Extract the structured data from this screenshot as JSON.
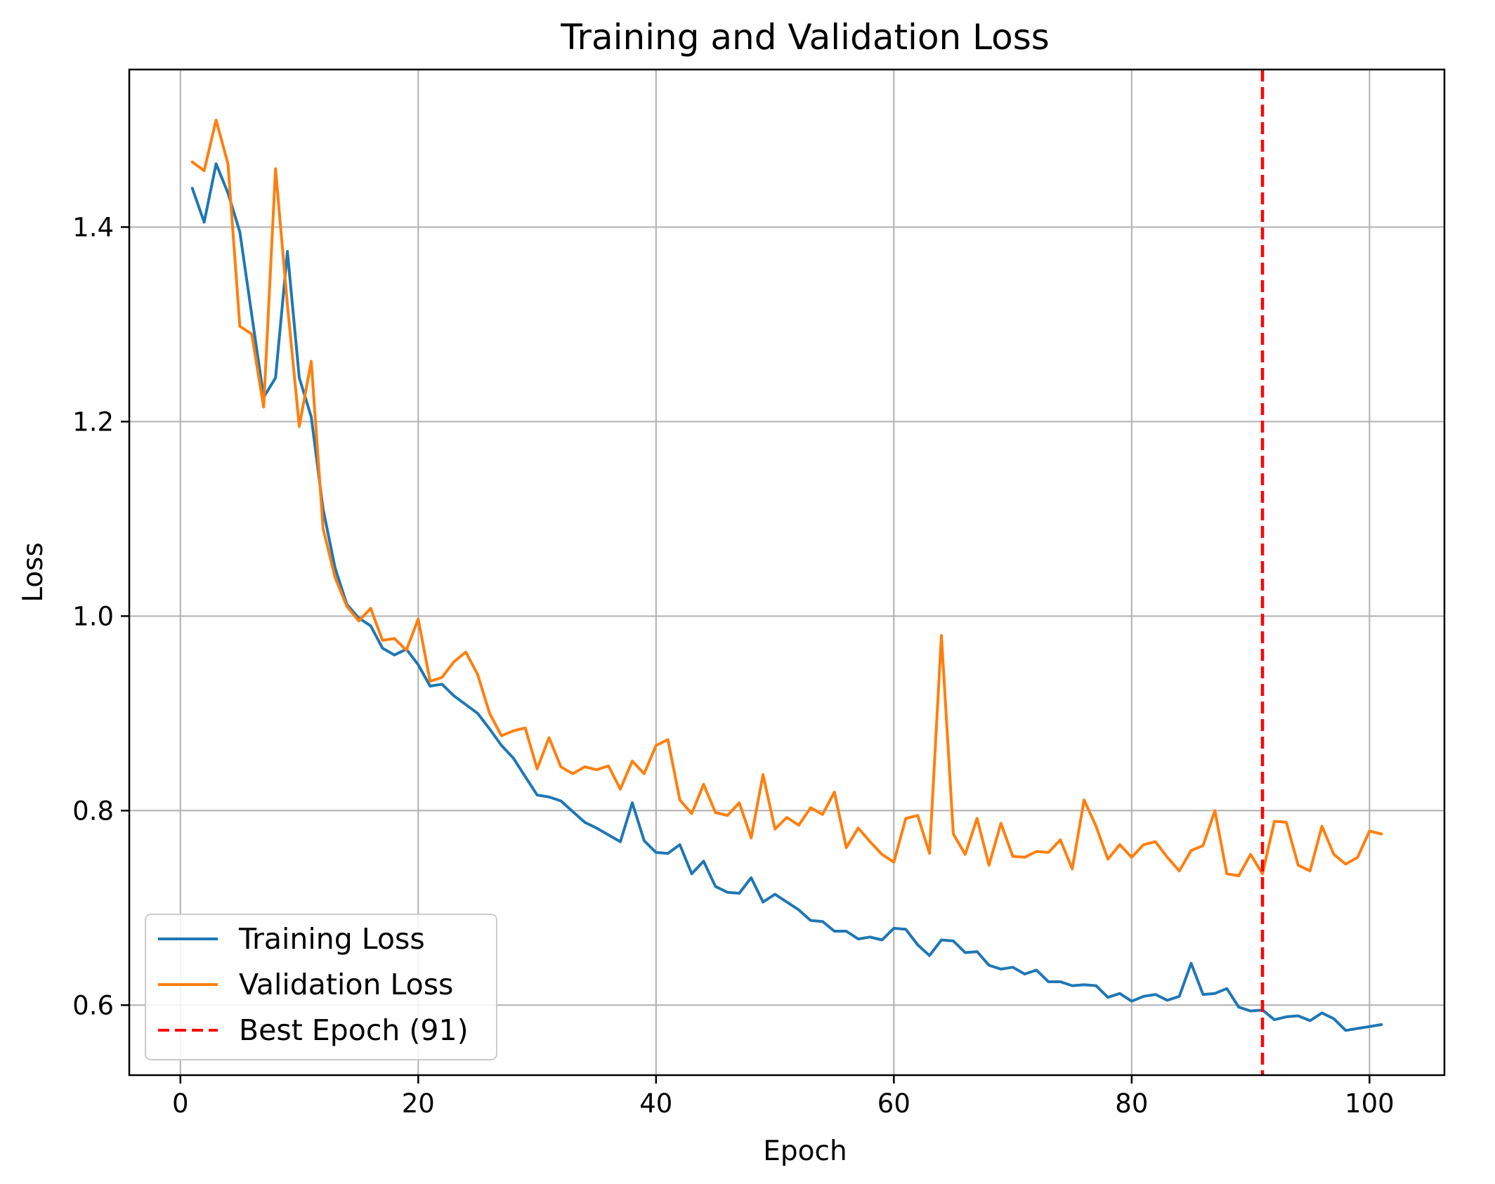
{
  "chart_data": {
    "type": "line",
    "title": "Training and Validation Loss",
    "xlabel": "Epoch",
    "ylabel": "Loss",
    "xlim": [
      -4.3,
      106.3
    ],
    "ylim": [
      0.528,
      1.562
    ],
    "xticks": [
      0,
      20,
      40,
      60,
      80,
      100
    ],
    "xtick_labels": [
      "0",
      "20",
      "40",
      "60",
      "80",
      "100"
    ],
    "yticks": [
      0.6,
      0.8,
      1.0,
      1.2,
      1.4
    ],
    "ytick_labels": [
      "0.6",
      "0.8",
      "1.0",
      "1.2",
      "1.4"
    ],
    "grid": true,
    "legend_position": "lower-left",
    "x": [
      1,
      2,
      3,
      4,
      5,
      6,
      7,
      8,
      9,
      10,
      11,
      12,
      13,
      14,
      15,
      16,
      17,
      18,
      19,
      20,
      21,
      22,
      23,
      24,
      25,
      26,
      27,
      28,
      29,
      30,
      31,
      32,
      33,
      34,
      35,
      36,
      37,
      38,
      39,
      40,
      41,
      42,
      43,
      44,
      45,
      46,
      47,
      48,
      49,
      50,
      51,
      52,
      53,
      54,
      55,
      56,
      57,
      58,
      59,
      60,
      61,
      62,
      63,
      64,
      65,
      66,
      67,
      68,
      69,
      70,
      71,
      72,
      73,
      74,
      75,
      76,
      77,
      78,
      79,
      80,
      81,
      82,
      83,
      84,
      85,
      86,
      87,
      88,
      89,
      90,
      91,
      92,
      93,
      94,
      95,
      96,
      97,
      98,
      99,
      100,
      101
    ],
    "series": [
      {
        "name": "Training Loss",
        "color": "#1f77b4",
        "values": [
          1.44,
          1.405,
          1.465,
          1.435,
          1.395,
          1.31,
          1.225,
          1.245,
          1.375,
          1.245,
          1.205,
          1.11,
          1.05,
          1.012,
          0.998,
          0.99,
          0.967,
          0.96,
          0.966,
          0.95,
          0.928,
          0.93,
          0.918,
          0.909,
          0.9,
          0.884,
          0.867,
          0.854,
          0.835,
          0.816,
          0.814,
          0.81,
          0.799,
          0.788,
          0.782,
          0.775,
          0.768,
          0.808,
          0.769,
          0.757,
          0.756,
          0.765,
          0.735,
          0.748,
          0.722,
          0.716,
          0.715,
          0.731,
          0.706,
          0.714,
          0.706,
          0.698,
          0.687,
          0.686,
          0.676,
          0.676,
          0.668,
          0.67,
          0.667,
          0.679,
          0.678,
          0.662,
          0.651,
          0.667,
          0.666,
          0.654,
          0.655,
          0.641,
          0.637,
          0.639,
          0.632,
          0.636,
          0.624,
          0.624,
          0.62,
          0.621,
          0.62,
          0.608,
          0.612,
          0.604,
          0.609,
          0.611,
          0.605,
          0.609,
          0.643,
          0.611,
          0.612,
          0.617,
          0.598,
          0.594,
          0.595,
          0.585,
          0.588,
          0.589,
          0.584,
          0.592,
          0.586,
          0.574,
          0.576,
          0.578,
          0.58
        ]
      },
      {
        "name": "Validation Loss",
        "color": "#ff7f0e",
        "values": [
          1.467,
          1.458,
          1.51,
          1.465,
          1.298,
          1.29,
          1.215,
          1.46,
          1.32,
          1.195,
          1.262,
          1.09,
          1.04,
          1.01,
          0.995,
          1.008,
          0.975,
          0.977,
          0.965,
          0.997,
          0.933,
          0.937,
          0.953,
          0.963,
          0.94,
          0.9,
          0.877,
          0.882,
          0.885,
          0.843,
          0.875,
          0.845,
          0.838,
          0.845,
          0.842,
          0.846,
          0.822,
          0.851,
          0.838,
          0.867,
          0.873,
          0.811,
          0.797,
          0.827,
          0.798,
          0.795,
          0.808,
          0.772,
          0.837,
          0.781,
          0.793,
          0.785,
          0.803,
          0.796,
          0.819,
          0.762,
          0.782,
          0.768,
          0.755,
          0.747,
          0.792,
          0.795,
          0.756,
          0.98,
          0.776,
          0.755,
          0.792,
          0.744,
          0.787,
          0.753,
          0.752,
          0.758,
          0.757,
          0.77,
          0.74,
          0.811,
          0.784,
          0.75,
          0.765,
          0.752,
          0.765,
          0.768,
          0.752,
          0.738,
          0.759,
          0.764,
          0.8,
          0.735,
          0.733,
          0.755,
          0.735,
          0.789,
          0.788,
          0.744,
          0.738,
          0.784,
          0.755,
          0.745,
          0.752,
          0.779,
          0.776
        ]
      }
    ],
    "reference_lines": [
      {
        "name": "Best Epoch (91)",
        "x": 91,
        "color": "#ff0000",
        "style": "dashed"
      }
    ],
    "legend": [
      "Training Loss",
      "Validation Loss",
      "Best Epoch (91)"
    ]
  }
}
